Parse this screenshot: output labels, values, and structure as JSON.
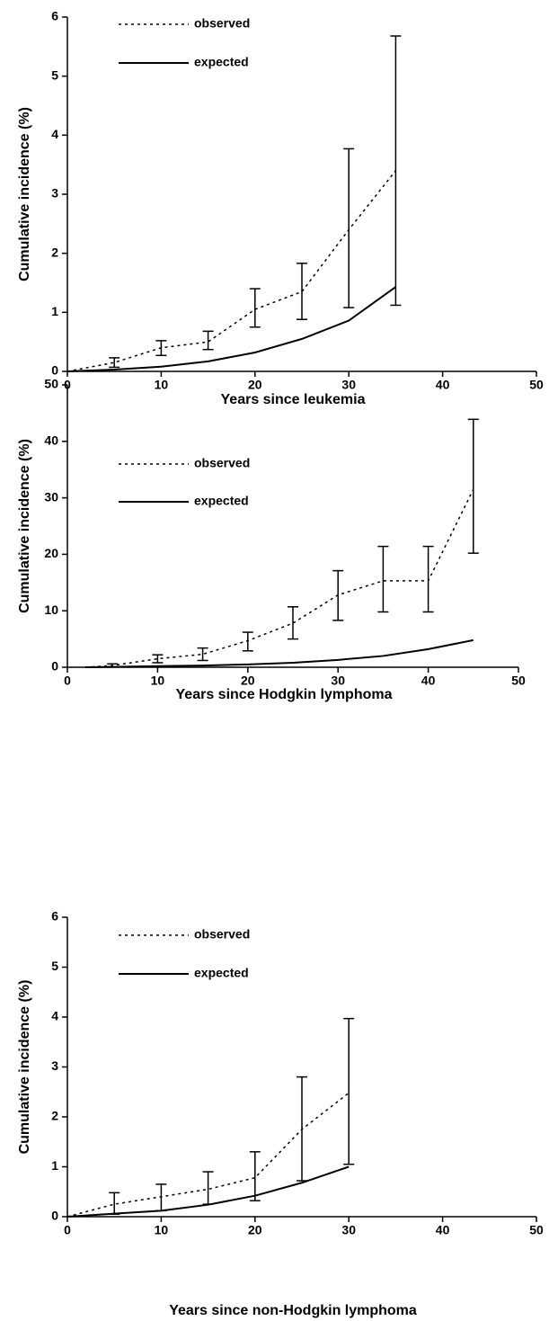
{
  "chart_data": [
    {
      "type": "line",
      "x_label": "Years since leukemia",
      "y_label": "Cumulative incidence (%)",
      "x": [
        0,
        5,
        10,
        15,
        20,
        25,
        30,
        35
      ],
      "series": [
        {
          "name": "observed",
          "color": "#000000",
          "line_style": "dotted",
          "values": [
            0,
            0.15,
            0.4,
            0.5,
            1.05,
            1.35,
            2.4,
            3.4
          ],
          "error_low": [
            null,
            0.07,
            0.27,
            0.37,
            0.75,
            0.88,
            1.08,
            1.12
          ],
          "error_high": [
            null,
            0.23,
            0.52,
            0.68,
            1.4,
            1.83,
            3.77,
            5.68
          ]
        },
        {
          "name": "expected",
          "color": "#000000",
          "line_style": "solid",
          "values": [
            0,
            0.03,
            0.08,
            0.17,
            0.32,
            0.55,
            0.86,
            1.43
          ]
        }
      ],
      "xlim": [
        0,
        50
      ],
      "xticks": [
        0,
        10,
        20,
        30,
        40,
        50
      ],
      "ylim": [
        0,
        6
      ],
      "yticks": [
        0,
        1,
        2,
        3,
        4,
        5,
        6
      ],
      "grid": false
    },
    {
      "type": "line",
      "x_label": "Years since Hodgkin lymphoma",
      "y_label": "Cumulative incidence (%)",
      "x": [
        2,
        5,
        10,
        15,
        20,
        25,
        30,
        35,
        40,
        45
      ],
      "series": [
        {
          "name": "observed",
          "color": "#000000",
          "line_style": "dotted",
          "values": [
            0,
            0.3,
            1.5,
            2.3,
            4.7,
            7.8,
            12.8,
            15.3,
            15.3,
            31.5
          ],
          "error_low": [
            null,
            0.1,
            0.8,
            1.2,
            2.9,
            5,
            8.3,
            9.8,
            9.8,
            20.2
          ],
          "error_high": [
            null,
            0.6,
            2.2,
            3.4,
            6.2,
            10.7,
            17.1,
            21.4,
            21.4,
            43.9
          ]
        },
        {
          "name": "expected",
          "color": "#000000",
          "line_style": "solid",
          "values": [
            0,
            0.05,
            0.2,
            0.3,
            0.5,
            0.8,
            1.3,
            2,
            3.2,
            4.8
          ]
        }
      ],
      "xlim": [
        0,
        50
      ],
      "xticks": [
        0,
        10,
        20,
        30,
        40,
        50
      ],
      "ylim": [
        0,
        50
      ],
      "yticks": [
        0,
        10,
        20,
        30,
        40,
        50
      ],
      "grid": false
    },
    {
      "type": "line",
      "x_label": "Years since non-Hodgkin lymphoma",
      "y_label": "Cumulative incidence (%)",
      "x": [
        0,
        5,
        10,
        15,
        20,
        25,
        30
      ],
      "series": [
        {
          "name": "observed",
          "color": "#000000",
          "line_style": "dotted",
          "values": [
            0,
            0.25,
            0.4,
            0.55,
            0.78,
            1.75,
            2.48
          ],
          "error_low": [
            null,
            0.05,
            0.12,
            0.25,
            0.32,
            0.72,
            1.05
          ],
          "error_high": [
            null,
            0.48,
            0.65,
            0.9,
            1.3,
            2.8,
            3.97
          ]
        },
        {
          "name": "expected",
          "color": "#000000",
          "line_style": "solid",
          "values": [
            0,
            0.06,
            0.12,
            0.24,
            0.42,
            0.68,
            1.0
          ]
        }
      ],
      "xlim": [
        0,
        50
      ],
      "xticks": [
        0,
        10,
        20,
        30,
        40,
        50
      ],
      "ylim": [
        0,
        6
      ],
      "yticks": [
        0,
        1,
        2,
        3,
        4,
        5,
        6
      ],
      "grid": false
    }
  ]
}
